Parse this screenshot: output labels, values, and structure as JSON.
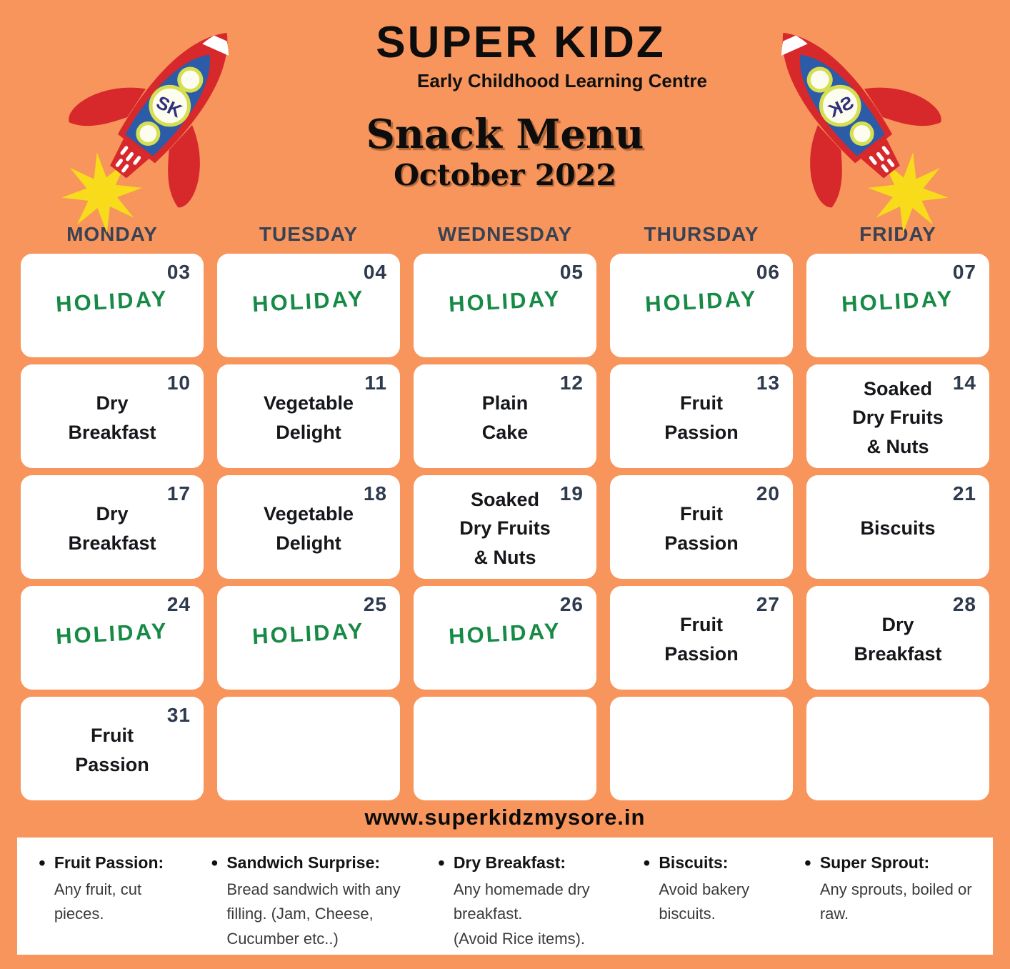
{
  "header": {
    "brand": "SUPER KIDZ",
    "tagline": "Early Childhood Learning Centre",
    "title": "Snack Menu",
    "subtitle": "October 2022",
    "logo_initials": "SK"
  },
  "weekdays": [
    "MONDAY",
    "TUESDAY",
    "WEDNESDAY",
    "THURSDAY",
    "FRIDAY"
  ],
  "calendar": {
    "cells": [
      {
        "date": "03",
        "label": "HOLIDAY",
        "type": "holiday"
      },
      {
        "date": "04",
        "label": "HOLIDAY",
        "type": "holiday"
      },
      {
        "date": "05",
        "label": "HOLIDAY",
        "type": "holiday"
      },
      {
        "date": "06",
        "label": "HOLIDAY",
        "type": "holiday"
      },
      {
        "date": "07",
        "label": "HOLIDAY",
        "type": "holiday"
      },
      {
        "date": "10",
        "label": "Dry\nBreakfast",
        "type": "menu"
      },
      {
        "date": "11",
        "label": "Vegetable\nDelight",
        "type": "menu"
      },
      {
        "date": "12",
        "label": "Plain\nCake",
        "type": "menu"
      },
      {
        "date": "13",
        "label": "Fruit\nPassion",
        "type": "menu"
      },
      {
        "date": "14",
        "label": "Soaked\nDry Fruits\n& Nuts",
        "type": "menu"
      },
      {
        "date": "17",
        "label": "Dry\nBreakfast",
        "type": "menu"
      },
      {
        "date": "18",
        "label": "Vegetable\nDelight",
        "type": "menu"
      },
      {
        "date": "19",
        "label": "Soaked\nDry Fruits\n& Nuts",
        "type": "menu"
      },
      {
        "date": "20",
        "label": "Fruit\nPassion",
        "type": "menu"
      },
      {
        "date": "21",
        "label": "Biscuits",
        "type": "menu"
      },
      {
        "date": "24",
        "label": "HOLIDAY",
        "type": "holiday"
      },
      {
        "date": "25",
        "label": "HOLIDAY",
        "type": "holiday"
      },
      {
        "date": "26",
        "label": "HOLIDAY",
        "type": "holiday"
      },
      {
        "date": "27",
        "label": "Fruit\nPassion",
        "type": "menu"
      },
      {
        "date": "28",
        "label": "Dry\nBreakfast",
        "type": "menu"
      },
      {
        "date": "31",
        "label": "Fruit\nPassion",
        "type": "menu"
      },
      {
        "date": "",
        "label": "",
        "type": "empty"
      },
      {
        "date": "",
        "label": "",
        "type": "empty"
      },
      {
        "date": "",
        "label": "",
        "type": "empty"
      },
      {
        "date": "",
        "label": "",
        "type": "empty"
      }
    ]
  },
  "website": "www.superkidzmysore.in",
  "legend": [
    {
      "title": "Fruit Passion:",
      "desc": "Any fruit, cut pieces."
    },
    {
      "title": "Sandwich Surprise:",
      "desc": "Bread sandwich with any filling. (Jam, Cheese, Cucumber etc..)"
    },
    {
      "title": "Dry Breakfast:",
      "desc": "Any homemade dry breakfast.\n(Avoid Rice items)."
    },
    {
      "title": "Biscuits:",
      "desc": "Avoid bakery biscuits."
    },
    {
      "title": "Super Sprout:",
      "desc": "Any sprouts, boiled or raw."
    }
  ],
  "colors": {
    "background": "#F7955C",
    "card": "#FFFFFF",
    "holiday_green": "#178A46",
    "date_navy": "#2E3A4D",
    "rocket_red": "#D7282B",
    "rocket_blue": "#2C5CA8",
    "window_ring": "#D6DE52",
    "window_fill": "#FCFDEE",
    "flame_yellow": "#F8DC1C",
    "logo_purple": "#32307B"
  }
}
